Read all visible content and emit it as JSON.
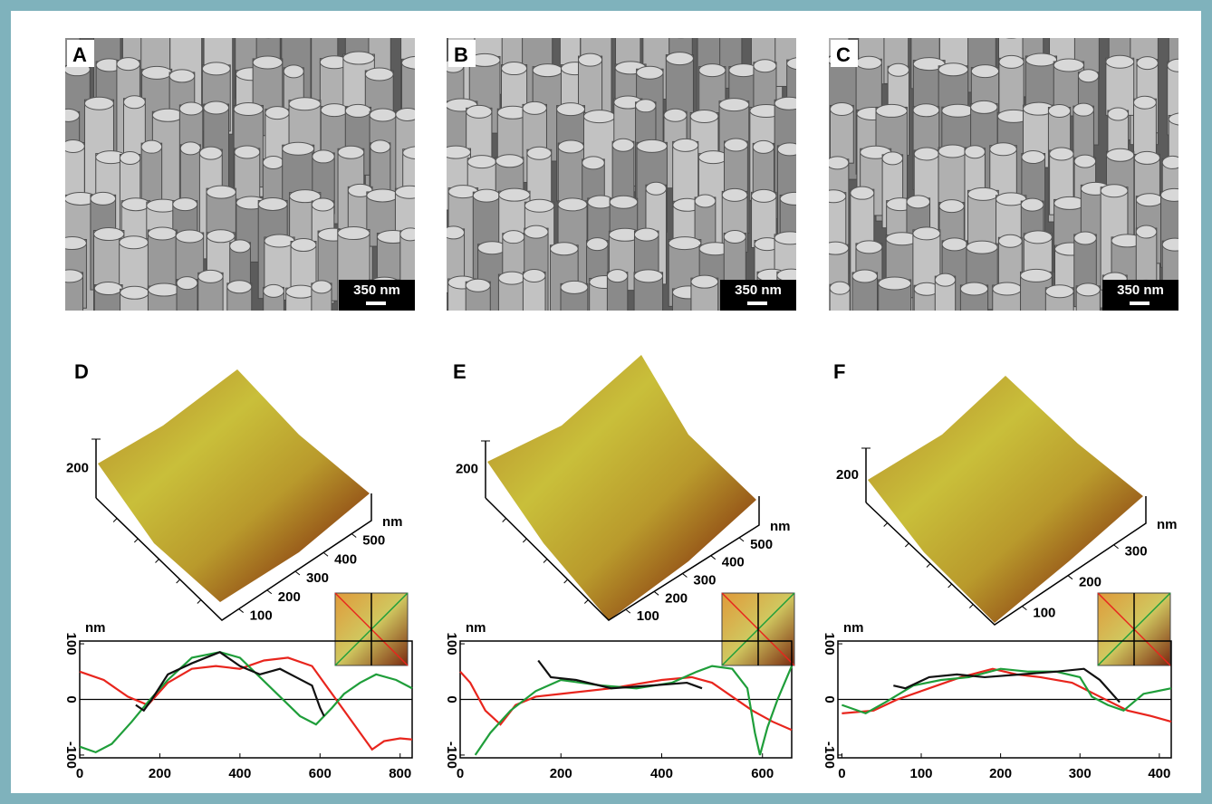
{
  "panels": [
    {
      "label": "A",
      "scale_bar": "350 nm"
    },
    {
      "label": "B",
      "scale_bar": "350 nm"
    },
    {
      "label": "C",
      "scale_bar": "350 nm"
    }
  ],
  "surfaces": [
    {
      "label": "D",
      "z_tick": "200",
      "unit": "nm",
      "ticks": [
        "100",
        "200",
        "300",
        "400",
        "500"
      ]
    },
    {
      "label": "E",
      "z_tick": "200",
      "unit": "nm",
      "ticks": [
        "100",
        "200",
        "300",
        "400",
        "500"
      ]
    },
    {
      "label": "F",
      "z_tick": "200",
      "unit": "nm",
      "ticks": [
        "100",
        "200",
        "300"
      ]
    }
  ],
  "chart_data": [
    {
      "type": "line",
      "y_label": "nm",
      "xlim": [
        0,
        830
      ],
      "xticks": [
        0,
        200,
        400,
        600,
        800
      ],
      "ylim": [
        -105,
        105
      ],
      "yticks": [
        -100,
        0,
        100
      ],
      "series": [
        {
          "color": "#e8251d",
          "x": [
            0,
            60,
            120,
            170,
            220,
            280,
            340,
            400,
            460,
            520,
            580,
            620,
            650,
            700,
            730,
            760,
            800,
            830
          ],
          "values": [
            50,
            35,
            5,
            -10,
            30,
            55,
            60,
            55,
            70,
            75,
            60,
            20,
            -10,
            -60,
            -90,
            -75,
            -70,
            -72
          ]
        },
        {
          "color": "#1f9e3a",
          "x": [
            0,
            40,
            80,
            130,
            170,
            220,
            280,
            350,
            400,
            450,
            500,
            550,
            590,
            630,
            660,
            700,
            740,
            790,
            830
          ],
          "values": [
            -85,
            -95,
            -80,
            -40,
            -5,
            35,
            75,
            85,
            75,
            40,
            5,
            -30,
            -45,
            -15,
            10,
            30,
            45,
            35,
            20
          ]
        },
        {
          "color": "#111111",
          "x": [
            140,
            160,
            180,
            220,
            280,
            350,
            400,
            450,
            500,
            540,
            580,
            600,
            610
          ],
          "values": [
            -10,
            -20,
            0,
            45,
            65,
            85,
            60,
            45,
            55,
            40,
            25,
            -15,
            -30
          ]
        }
      ]
    },
    {
      "type": "line",
      "y_label": "nm",
      "xlim": [
        0,
        658
      ],
      "xticks": [
        0,
        200,
        400,
        600
      ],
      "ylim": [
        -105,
        105
      ],
      "yticks": [
        -100,
        0,
        100
      ],
      "series": [
        {
          "color": "#e8251d",
          "x": [
            0,
            20,
            50,
            80,
            110,
            150,
            200,
            300,
            400,
            460,
            500,
            540,
            580,
            620,
            658
          ],
          "values": [
            50,
            30,
            -20,
            -45,
            -10,
            5,
            10,
            20,
            35,
            40,
            30,
            5,
            -20,
            -40,
            -55
          ]
        },
        {
          "color": "#1f9e3a",
          "x": [
            30,
            60,
            100,
            150,
            200,
            280,
            350,
            420,
            470,
            500,
            540,
            570,
            585,
            595,
            610,
            630,
            658
          ],
          "values": [
            -100,
            -60,
            -20,
            15,
            35,
            25,
            20,
            30,
            50,
            60,
            55,
            20,
            -60,
            -100,
            -50,
            0,
            60
          ]
        },
        {
          "color": "#111111",
          "x": [
            155,
            180,
            230,
            300,
            380,
            450,
            480
          ],
          "values": [
            70,
            40,
            35,
            20,
            25,
            30,
            20
          ]
        }
      ]
    },
    {
      "type": "line",
      "y_label": "nm",
      "xlim": [
        -5,
        415
      ],
      "xticks": [
        0,
        100,
        200,
        300,
        400
      ],
      "ylim": [
        -105,
        105
      ],
      "yticks": [
        -100,
        0,
        100
      ],
      "series": [
        {
          "color": "#e8251d",
          "x": [
            0,
            40,
            70,
            110,
            150,
            190,
            220,
            250,
            290,
            325,
            360,
            390,
            415
          ],
          "values": [
            -25,
            -20,
            0,
            20,
            40,
            55,
            45,
            40,
            30,
            5,
            -20,
            -30,
            -40
          ]
        },
        {
          "color": "#1f9e3a",
          "x": [
            0,
            30,
            55,
            90,
            125,
            160,
            200,
            235,
            270,
            300,
            315,
            335,
            355,
            380,
            415
          ],
          "values": [
            -10,
            -25,
            -5,
            25,
            35,
            40,
            55,
            50,
            50,
            40,
            5,
            -10,
            -20,
            10,
            20
          ]
        },
        {
          "color": "#111111",
          "x": [
            65,
            80,
            110,
            145,
            180,
            225,
            270,
            305,
            325,
            350
          ],
          "values": [
            25,
            20,
            40,
            45,
            40,
            45,
            50,
            55,
            35,
            -5
          ]
        }
      ]
    }
  ]
}
